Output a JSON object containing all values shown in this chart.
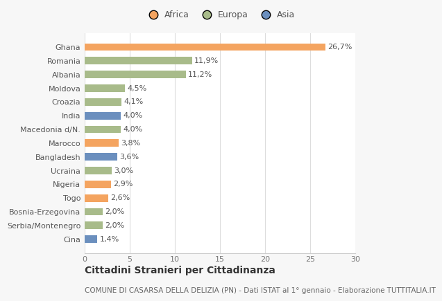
{
  "categories": [
    "Ghana",
    "Romania",
    "Albania",
    "Moldova",
    "Croazia",
    "India",
    "Macedonia d/N.",
    "Marocco",
    "Bangladesh",
    "Ucraina",
    "Nigeria",
    "Togo",
    "Bosnia-Erzegovina",
    "Serbia/Montenegro",
    "Cina"
  ],
  "values": [
    26.7,
    11.9,
    11.2,
    4.5,
    4.1,
    4.0,
    4.0,
    3.8,
    3.6,
    3.0,
    2.9,
    2.6,
    2.0,
    2.0,
    1.4
  ],
  "labels": [
    "26,7%",
    "11,9%",
    "11,2%",
    "4,5%",
    "4,1%",
    "4,0%",
    "4,0%",
    "3,8%",
    "3,6%",
    "3,0%",
    "2,9%",
    "2,6%",
    "2,0%",
    "2,0%",
    "1,4%"
  ],
  "colors": [
    "#f4a460",
    "#a8bb8a",
    "#a8bb8a",
    "#a8bb8a",
    "#a8bb8a",
    "#6b8fbe",
    "#a8bb8a",
    "#f4a460",
    "#6b8fbe",
    "#a8bb8a",
    "#f4a460",
    "#f4a460",
    "#a8bb8a",
    "#a8bb8a",
    "#6b8fbe"
  ],
  "legend_labels": [
    "Africa",
    "Europa",
    "Asia"
  ],
  "legend_colors": [
    "#f4a460",
    "#a8bb8a",
    "#6b8fbe"
  ],
  "xlim": [
    0,
    30
  ],
  "xticks": [
    0,
    5,
    10,
    15,
    20,
    25,
    30
  ],
  "title": "Cittadini Stranieri per Cittadinanza",
  "subtitle": "COMUNE DI CASARSA DELLA DELIZIA (PN) - Dati ISTAT al 1° gennaio - Elaborazione TUTTITALIA.IT",
  "bg_color": "#f7f7f7",
  "bar_bg_color": "#ffffff",
  "bar_height": 0.55,
  "label_fontsize": 8,
  "ytick_fontsize": 8,
  "xtick_fontsize": 8,
  "legend_fontsize": 9,
  "title_fontsize": 10,
  "subtitle_fontsize": 7.5
}
